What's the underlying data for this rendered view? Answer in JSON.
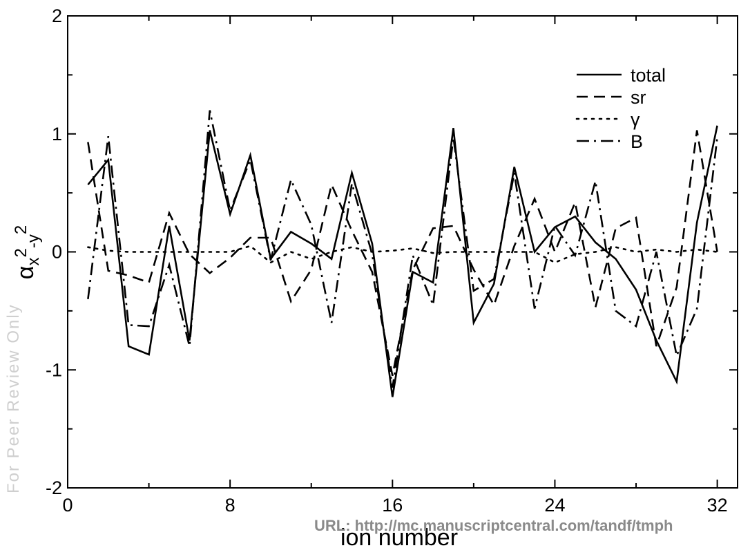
{
  "chart_data": {
    "type": "line",
    "title": "",
    "xlabel": "ion number",
    "ylabel_main": "α",
    "ylabel_sub": "x",
    "ylabel_sup1": "2",
    "ylabel_mid": "-y",
    "ylabel_sup2": "2",
    "xlim": [
      0,
      33
    ],
    "ylim": [
      -2,
      2
    ],
    "xticks": [
      0,
      8,
      16,
      24,
      32
    ],
    "yticks": [
      -2,
      -1,
      0,
      1,
      2
    ],
    "grid": false,
    "legend_position": "top-right",
    "x": [
      1,
      2,
      3,
      4,
      5,
      6,
      7,
      8,
      9,
      10,
      11,
      12,
      13,
      14,
      15,
      16,
      17,
      18,
      19,
      20,
      21,
      22,
      23,
      24,
      25,
      26,
      27,
      28,
      29,
      30,
      31,
      32
    ],
    "series": [
      {
        "name": "total",
        "style": "solid",
        "values": [
          0.57,
          0.78,
          -0.8,
          -0.87,
          0.22,
          -0.75,
          1.03,
          0.32,
          0.82,
          -0.06,
          0.17,
          0.07,
          -0.06,
          0.67,
          0.07,
          -1.23,
          -0.17,
          -0.26,
          1.05,
          -0.6,
          -0.27,
          0.72,
          0.0,
          0.21,
          0.3,
          0.08,
          -0.06,
          -0.32,
          -0.75,
          -1.1,
          0.25,
          1.07
        ]
      },
      {
        "name": "sr",
        "style": "dashed",
        "values": [
          0.93,
          -0.16,
          -0.2,
          -0.26,
          0.33,
          -0.02,
          -0.18,
          -0.05,
          0.12,
          0.12,
          -0.42,
          -0.15,
          0.57,
          0.18,
          -0.17,
          -1.05,
          -0.15,
          0.2,
          0.22,
          -0.15,
          -0.45,
          0.05,
          0.45,
          0.0,
          0.42,
          -0.47,
          0.2,
          0.29,
          -0.8,
          -0.3,
          1.03,
          0.0
        ]
      },
      {
        "name": "γ",
        "style": "dotted",
        "values": [
          0.04,
          0.01,
          0.0,
          0.0,
          0.0,
          0.0,
          0.0,
          0.0,
          0.05,
          -0.09,
          0.0,
          -0.06,
          0.0,
          0.04,
          0.0,
          0.01,
          0.03,
          -0.01,
          0.0,
          0.0,
          0.0,
          0.0,
          0.0,
          -0.09,
          -0.02,
          0.0,
          0.04,
          0.0,
          0.02,
          0.0,
          0.02,
          0.0
        ]
      },
      {
        "name": "B",
        "style": "dashdot",
        "values": [
          -0.4,
          0.98,
          -0.62,
          -0.63,
          -0.11,
          -0.8,
          1.2,
          0.35,
          0.78,
          -0.07,
          0.61,
          0.23,
          -0.6,
          0.58,
          -0.02,
          -1.15,
          -0.03,
          -0.45,
          0.97,
          -0.33,
          -0.23,
          0.67,
          -0.48,
          0.22,
          -0.03,
          0.6,
          -0.5,
          -0.63,
          0.0,
          -0.88,
          -0.48,
          0.97
        ]
      }
    ]
  },
  "watermark": "URL: http://mc.manuscriptcentral.com/tandf/tmph",
  "side_text": "For Peer Review Only"
}
